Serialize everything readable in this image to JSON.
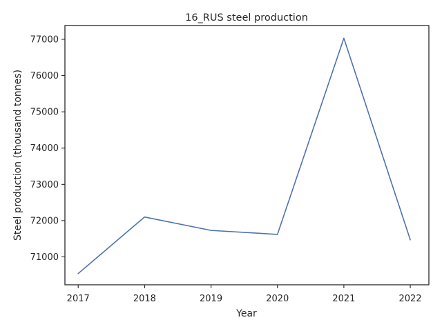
{
  "chart_data": {
    "type": "line",
    "title": "16_RUS steel production",
    "xlabel": "Year",
    "ylabel": "Steel production (thousand tonnes)",
    "x": [
      2017,
      2018,
      2019,
      2020,
      2021,
      2022
    ],
    "xticks": [
      "2017",
      "2018",
      "2019",
      "2020",
      "2021",
      "2022"
    ],
    "yticks": [
      "71000",
      "72000",
      "73000",
      "74000",
      "75000",
      "76000",
      "77000"
    ],
    "xlim": [
      2016.8,
      2022.28
    ],
    "ylim": [
      70230,
      77380
    ],
    "grid": false,
    "series": [
      {
        "values": [
          70540,
          72100,
          71730,
          71620,
          77030,
          71470
        ],
        "color": "#4c72b0"
      }
    ]
  }
}
